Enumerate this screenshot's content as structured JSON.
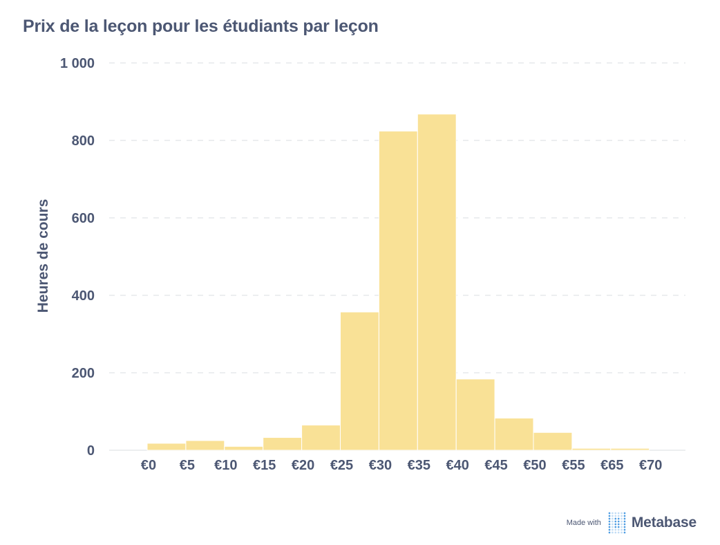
{
  "title": "Prix de la leçon pour les étudiants par leçon",
  "footer": {
    "made_with": "Made with",
    "brand": "Metabase"
  },
  "colors": {
    "bar": "#f9e196",
    "text": "#4c5773",
    "grid": "#e6e8ec",
    "logo_dot": "#509ee3"
  },
  "chart_data": {
    "type": "bar",
    "ylabel": "Heures de cours",
    "xlabel": "",
    "ylim": [
      0,
      1000
    ],
    "y_ticks": [
      0,
      200,
      400,
      600,
      800,
      1000
    ],
    "y_tick_labels": [
      "0",
      "200",
      "400",
      "600",
      "800",
      "1 000"
    ],
    "grid": "horizontal-dashed",
    "categories": [
      "€0",
      "€5",
      "€10",
      "€15",
      "€20",
      "€25",
      "€30",
      "€35",
      "€40",
      "€45",
      "€50",
      "€55",
      "€65",
      "€70"
    ],
    "values": [
      18,
      25,
      10,
      33,
      65,
      357,
      824,
      868,
      184,
      83,
      46,
      5,
      5,
      0
    ]
  }
}
